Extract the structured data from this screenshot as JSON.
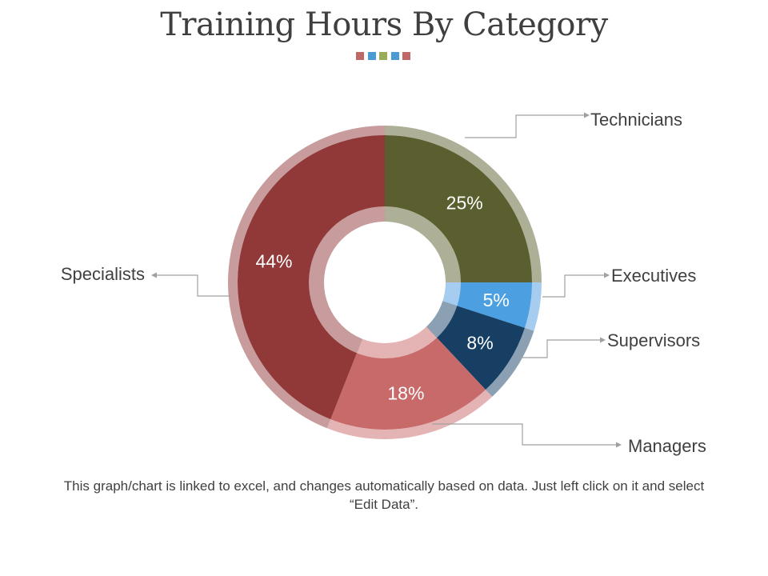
{
  "title": "Training Hours By Category",
  "title_squares": [
    "#c06868",
    "#4a9bd5",
    "#9aab5a",
    "#4a9bd5",
    "#c06868"
  ],
  "footer_note": "This graph/chart is linked to excel, and changes automatically based on data. Just left click on it and select “Edit Data”.",
  "chart_data": {
    "type": "pie",
    "title": "Training Hours By Category",
    "donut": true,
    "unit": "%",
    "start": "top, clockwise",
    "slices": [
      {
        "label": "Technicians",
        "value": 25,
        "data_label": "25%",
        "color": "#5b5f2f",
        "ring_color": "#aeaf97"
      },
      {
        "label": "Executives",
        "value": 5,
        "data_label": "5%",
        "color": "#4c9fe0",
        "ring_color": "#a6cdf0"
      },
      {
        "label": "Supervisors",
        "value": 8,
        "data_label": "8%",
        "color": "#163f63",
        "ring_color": "#8ba0b3"
      },
      {
        "label": "Managers",
        "value": 18,
        "data_label": "18%",
        "color": "#c96a6a",
        "ring_color": "#e4b3b3"
      },
      {
        "label": "Specialists",
        "value": 44,
        "data_label": "44%",
        "color": "#913838",
        "ring_color": "#c89c9c"
      }
    ]
  }
}
